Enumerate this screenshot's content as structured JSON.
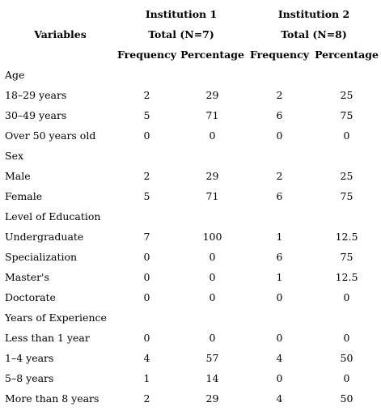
{
  "header": {
    "variables_label": "Variables",
    "institution1": {
      "name": "Institution 1",
      "total": "Total (N=7)"
    },
    "institution2": {
      "name": "Institution 2",
      "total": "Total (N=8)"
    },
    "frequency_label": "Frequency",
    "percentage_label": "Percentage"
  },
  "sections": [
    {
      "title": "Age",
      "rows": [
        {
          "label": "18–29 years",
          "f1": "2",
          "p1": "29",
          "f2": "2",
          "p2": "25"
        },
        {
          "label": "30–49 years",
          "f1": "5",
          "p1": "71",
          "f2": "6",
          "p2": "75"
        },
        {
          "label": "Over 50 years old",
          "f1": "0",
          "p1": "0",
          "f2": "0",
          "p2": "0"
        }
      ]
    },
    {
      "title": "Sex",
      "rows": [
        {
          "label": "Male",
          "f1": "2",
          "p1": "29",
          "f2": "2",
          "p2": "25"
        },
        {
          "label": "Female",
          "f1": "5",
          "p1": "71",
          "f2": "6",
          "p2": "75"
        }
      ]
    },
    {
      "title": "Level of Education",
      "rows": [
        {
          "label": "Undergraduate",
          "f1": "7",
          "p1": "100",
          "f2": "1",
          "p2": "12.5"
        },
        {
          "label": "Specialization",
          "f1": "0",
          "p1": "0",
          "f2": "6",
          "p2": "75"
        },
        {
          "label": "Master's",
          "f1": "0",
          "p1": "0",
          "f2": "1",
          "p2": "12.5"
        },
        {
          "label": "Doctorate",
          "f1": "0",
          "p1": "0",
          "f2": "0",
          "p2": "0"
        }
      ]
    },
    {
      "title": "Years of Experience",
      "rows": [
        {
          "label": "Less than 1 year",
          "f1": "0",
          "p1": "0",
          "f2": "0",
          "p2": "0"
        },
        {
          "label": "1–4 years",
          "f1": "4",
          "p1": "57",
          "f2": "4",
          "p2": "50"
        },
        {
          "label": "5–8 years",
          "f1": "1",
          "p1": "14",
          "f2": "0",
          "p2": "0"
        },
        {
          "label": "More than 8 years",
          "f1": "2",
          "p1": "29",
          "f2": "4",
          "p2": "50"
        }
      ]
    }
  ]
}
